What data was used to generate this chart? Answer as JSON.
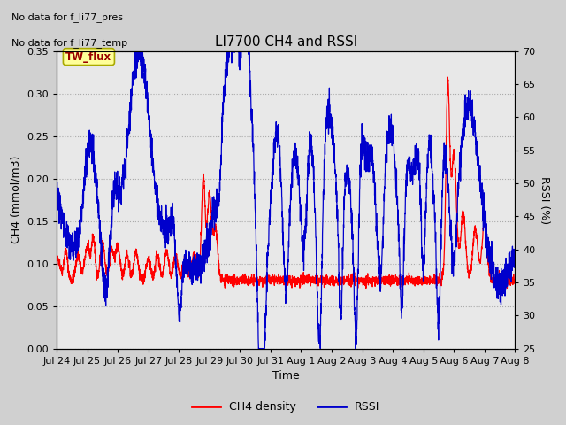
{
  "title": "LI7700 CH4 and RSSI",
  "xlabel": "Time",
  "ylabel_left": "CH4 (mmol/m3)",
  "ylabel_right": "RSSI (%)",
  "ylim_left": [
    0.0,
    0.35
  ],
  "ylim_right": [
    25,
    70
  ],
  "yticks_left": [
    0.0,
    0.05,
    0.1,
    0.15,
    0.2,
    0.25,
    0.3,
    0.35
  ],
  "yticks_right": [
    25,
    30,
    35,
    40,
    45,
    50,
    55,
    60,
    65,
    70
  ],
  "fig_bg_color": "#d0d0d0",
  "plot_bg_color": "#e8e8e8",
  "grid_color": "#c0c0c0",
  "ch4_color": "#ff0000",
  "rssi_color": "#0000cc",
  "annotation_text1": "No data for f_li77_pres",
  "annotation_text2": "No data for f_li77_temp",
  "site_label": "TW_flux",
  "site_label_color": "#990000",
  "site_label_bg": "#ffff99",
  "legend_ch4": "CH4 density",
  "legend_rssi": "RSSI",
  "x_tick_labels": [
    "Jul 24",
    "Jul 25",
    "Jul 26",
    "Jul 27",
    "Jul 28",
    "Jul 29",
    "Jul 30",
    "Jul 31",
    "Aug 1",
    "Aug 2",
    "Aug 3",
    "Aug 4",
    "Aug 5",
    "Aug 6",
    "Aug 7",
    "Aug 8"
  ],
  "seed": 42
}
